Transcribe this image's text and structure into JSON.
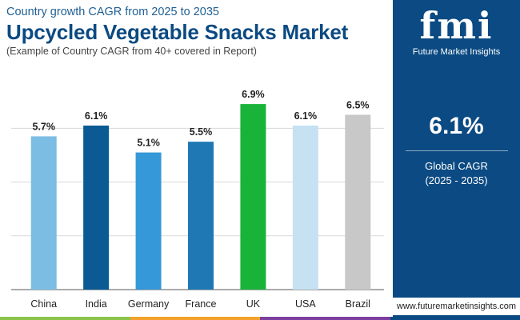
{
  "header": {
    "kicker": "Country growth CAGR from 2025 to 2035",
    "title": "Upcycled Vegetable Snacks Market",
    "note": "(Example of Country CAGR from 40+ covered in Report)"
  },
  "chart_data": {
    "type": "bar",
    "categories": [
      "China",
      "India",
      "Germany",
      "France",
      "UK",
      "USA",
      "Brazil"
    ],
    "values": [
      5.7,
      6.1,
      5.1,
      5.5,
      6.9,
      6.1,
      6.5
    ],
    "data_labels": [
      "5.7%",
      "6.1%",
      "5.1%",
      "5.5%",
      "6.9%",
      "6.1%",
      "6.5%"
    ],
    "bar_colors": [
      "#7bbde3",
      "#0b5a94",
      "#3598d8",
      "#1f78b4",
      "#19b33a",
      "#c5e1f2",
      "#c8c8c8"
    ],
    "ylim": [
      0,
      7.2
    ],
    "gridlines": [
      0,
      2.0,
      4.0,
      6.0
    ],
    "grid": true,
    "title": "",
    "xlabel": "",
    "ylabel": ""
  },
  "sidebar": {
    "logo_mark": "fmi",
    "logo_text": "Future Market Insights",
    "stat_value": "6.1%",
    "stat_label": "Global CAGR",
    "stat_period": "(2025 - 2035)",
    "url": "www.futuremarketinsights.com",
    "accent_colors": [
      "#8bc34a",
      "#f4a12b",
      "#7b3fa0",
      "#0b4a82"
    ]
  }
}
